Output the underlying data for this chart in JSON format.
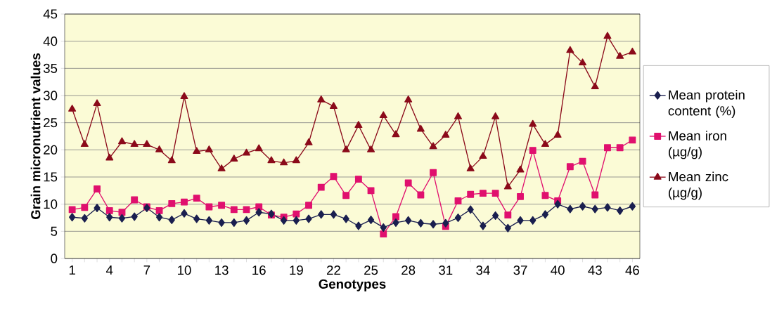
{
  "chart_data": {
    "type": "line",
    "xlabel": "Genotypes",
    "ylabel": "Grain micronutrient values",
    "categories": [
      "1",
      null,
      null,
      "4",
      null,
      null,
      "7",
      null,
      null,
      "10",
      null,
      null,
      "13",
      null,
      null,
      "16",
      null,
      null,
      "19",
      null,
      null,
      "22",
      null,
      null,
      "25",
      null,
      null,
      "28",
      null,
      null,
      "31",
      null,
      null,
      "34",
      null,
      null,
      "37",
      null,
      null,
      "40",
      null,
      null,
      "43",
      null,
      null,
      "46"
    ],
    "ylim": [
      0,
      45
    ],
    "yticks": [
      0,
      5,
      10,
      15,
      20,
      25,
      30,
      35,
      40,
      45
    ],
    "grid": "y",
    "legend": "right",
    "line_style": "solid",
    "series": [
      {
        "name": "Mean protein content (%)",
        "color": "#1a1f4f",
        "marker": "diamond",
        "values": [
          7.6,
          7.4,
          9.3,
          7.6,
          7.4,
          7.7,
          9.3,
          7.6,
          7.1,
          8.3,
          7.3,
          7,
          6.6,
          6.6,
          7,
          8.5,
          8.2,
          7,
          7,
          7.3,
          8.1,
          8.1,
          7.3,
          6,
          7.1,
          5.7,
          6.6,
          7,
          6.5,
          6.3,
          6.5,
          7.5,
          9,
          6,
          7.9,
          5.6,
          7,
          7,
          8.1,
          10,
          9.1,
          9.6,
          9.1,
          9.4,
          8.8,
          9.6
        ]
      },
      {
        "name": "Mean iron (µg/g)",
        "color": "#e0106e",
        "marker": "square",
        "values": [
          9,
          9.4,
          12.8,
          8.8,
          8.5,
          10.8,
          9.5,
          8.8,
          10.1,
          10.4,
          11.1,
          9.5,
          9.8,
          9,
          9,
          9.5,
          8,
          7.6,
          8.2,
          9.8,
          13.1,
          15.1,
          11.6,
          14.6,
          12.5,
          4.5,
          7.7,
          13.9,
          11.7,
          15.8,
          5.9,
          10.6,
          11.8,
          12,
          12,
          8,
          11.4,
          19.9,
          11.6,
          10.6,
          16.9,
          17.9,
          11.7,
          20.4,
          20.4,
          21.8
        ]
      },
      {
        "name": "Mean zinc (µg/g)",
        "color": "#8b0a1a",
        "marker": "triangle",
        "values": [
          27.5,
          21,
          28.5,
          18.5,
          21.5,
          21,
          21,
          20,
          18,
          29.8,
          19.7,
          20,
          16.5,
          18.3,
          19.4,
          20.2,
          18,
          17.6,
          18,
          21.3,
          29.2,
          28,
          20,
          24.5,
          20,
          26.3,
          22.8,
          29.2,
          23.8,
          20.6,
          22.7,
          26.1,
          16.5,
          18.8,
          26.1,
          13.2,
          16.3,
          24.7,
          21,
          22.7,
          38.3,
          36,
          31.6,
          40.9,
          37.2,
          38
        ]
      }
    ]
  }
}
